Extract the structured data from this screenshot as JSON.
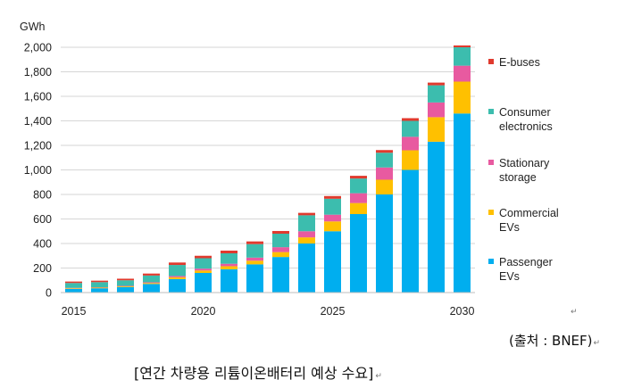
{
  "chart_data": {
    "type": "bar",
    "stacked": true,
    "unit": "GWh",
    "title": "",
    "xlabel": "",
    "ylabel": "GWh",
    "ylim": [
      0,
      2000
    ],
    "yticks": [
      "0",
      "200",
      "400",
      "600",
      "800",
      "1,000",
      "1,200",
      "1,400",
      "1,600",
      "1,800",
      "2,000"
    ],
    "ytick_values": [
      0,
      200,
      400,
      600,
      800,
      1000,
      1200,
      1400,
      1600,
      1800,
      2000
    ],
    "categories": [
      "2015",
      "2016",
      "2017",
      "2018",
      "2019",
      "2020",
      "2021",
      "2022",
      "2023",
      "2024",
      "2025",
      "2026",
      "2027",
      "2028",
      "2029",
      "2030"
    ],
    "xtick_labels": [
      "2015",
      "2020",
      "2025",
      "2030"
    ],
    "grid": "horizontal",
    "legend_position": "right",
    "series": [
      {
        "name": "Passenger\nEVs",
        "color": "#00AEEF",
        "values": [
          30,
          35,
          45,
          70,
          110,
          160,
          190,
          230,
          290,
          400,
          500,
          640,
          800,
          1000,
          1230,
          1460
        ]
      },
      {
        "name": "Commercial\nEVs",
        "color": "#FFC000",
        "values": [
          5,
          5,
          6,
          8,
          15,
          20,
          25,
          30,
          40,
          50,
          80,
          90,
          120,
          160,
          200,
          260
        ]
      },
      {
        "name": "Stationary\nstorage",
        "color": "#E85AA0",
        "values": [
          3,
          3,
          4,
          6,
          10,
          15,
          20,
          25,
          40,
          50,
          55,
          80,
          100,
          110,
          120,
          130
        ]
      },
      {
        "name": "Consumer\nelectronics",
        "color": "#3CBDAE",
        "values": [
          40,
          42,
          45,
          55,
          90,
          85,
          85,
          110,
          110,
          130,
          130,
          120,
          120,
          130,
          140,
          150
        ]
      },
      {
        "name": "E-buses",
        "color": "#E03A2E",
        "values": [
          12,
          12,
          13,
          16,
          20,
          20,
          22,
          22,
          22,
          20,
          22,
          22,
          22,
          22,
          22,
          15
        ]
      }
    ]
  },
  "page": {
    "source_note": "(출처 : BNEF)",
    "caption": "[연간 차량용 리튬이온배터리 예상 수요]",
    "para_mark": "↵"
  }
}
